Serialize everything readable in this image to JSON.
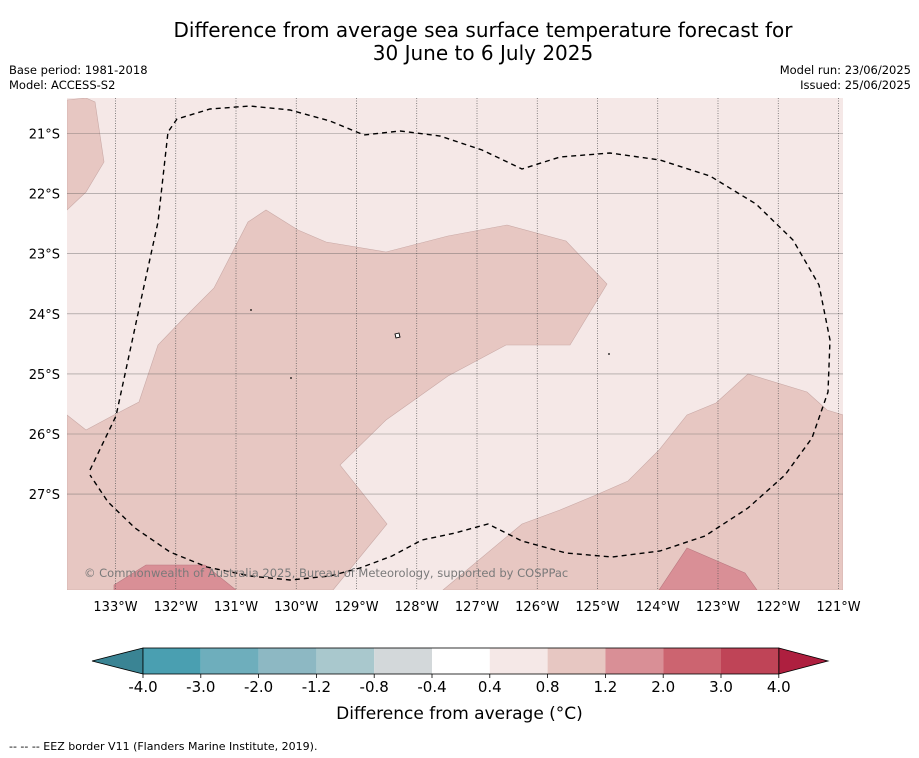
{
  "title_line1": "Difference from average sea surface temperature forecast for",
  "title_line2": "30 June to 6 July 2025",
  "base_period": "Base period: 1981-2018",
  "model": "Model: ACCESS-S2",
  "model_run": "Model run: 23/06/2025",
  "issued": "Issued: 25/06/2025",
  "copyright": "© Commonwealth of Australia 2025, Bureau of Meteorology, supported by COSPPac",
  "footer": "--  --  -- EEZ border V11 (Flanders Marine Institute, 2019).",
  "map": {
    "lon_labels": [
      "133°W",
      "132°W",
      "131°W",
      "130°W",
      "129°W",
      "128°W",
      "127°W",
      "126°W",
      "125°W",
      "124°W",
      "123°W",
      "122°W",
      "121°W"
    ],
    "lat_labels": [
      "21°S",
      "22°S",
      "23°S",
      "24°S",
      "25°S",
      "26°S",
      "27°S"
    ],
    "background_class_label": "0.4 to 0.8",
    "colors": {
      "class_0_4_0_8": "#f5e8e7",
      "class_0_8_1_2": "#e7c7c2",
      "class_1_2_2_0": "#d98f96",
      "eez_border": "#000000",
      "grid": "#555555"
    }
  },
  "colorbar": {
    "label": "Difference from average (°C)",
    "ticks": [
      "-4.0",
      "-3.0",
      "-2.0",
      "-1.2",
      "-0.8",
      "-0.4",
      "0.4",
      "0.8",
      "1.2",
      "2.0",
      "3.0",
      "4.0"
    ],
    "colors": [
      "#4a9fb1",
      "#6eaebc",
      "#8db8c3",
      "#a9c8cd",
      "#d3d8da",
      "#ffffff",
      "#f5e8e7",
      "#e7c7c2",
      "#d98f96",
      "#cc6470",
      "#bf4457"
    ],
    "extend_low_color": "#3a8494",
    "extend_high_color": "#ae1f3f"
  }
}
